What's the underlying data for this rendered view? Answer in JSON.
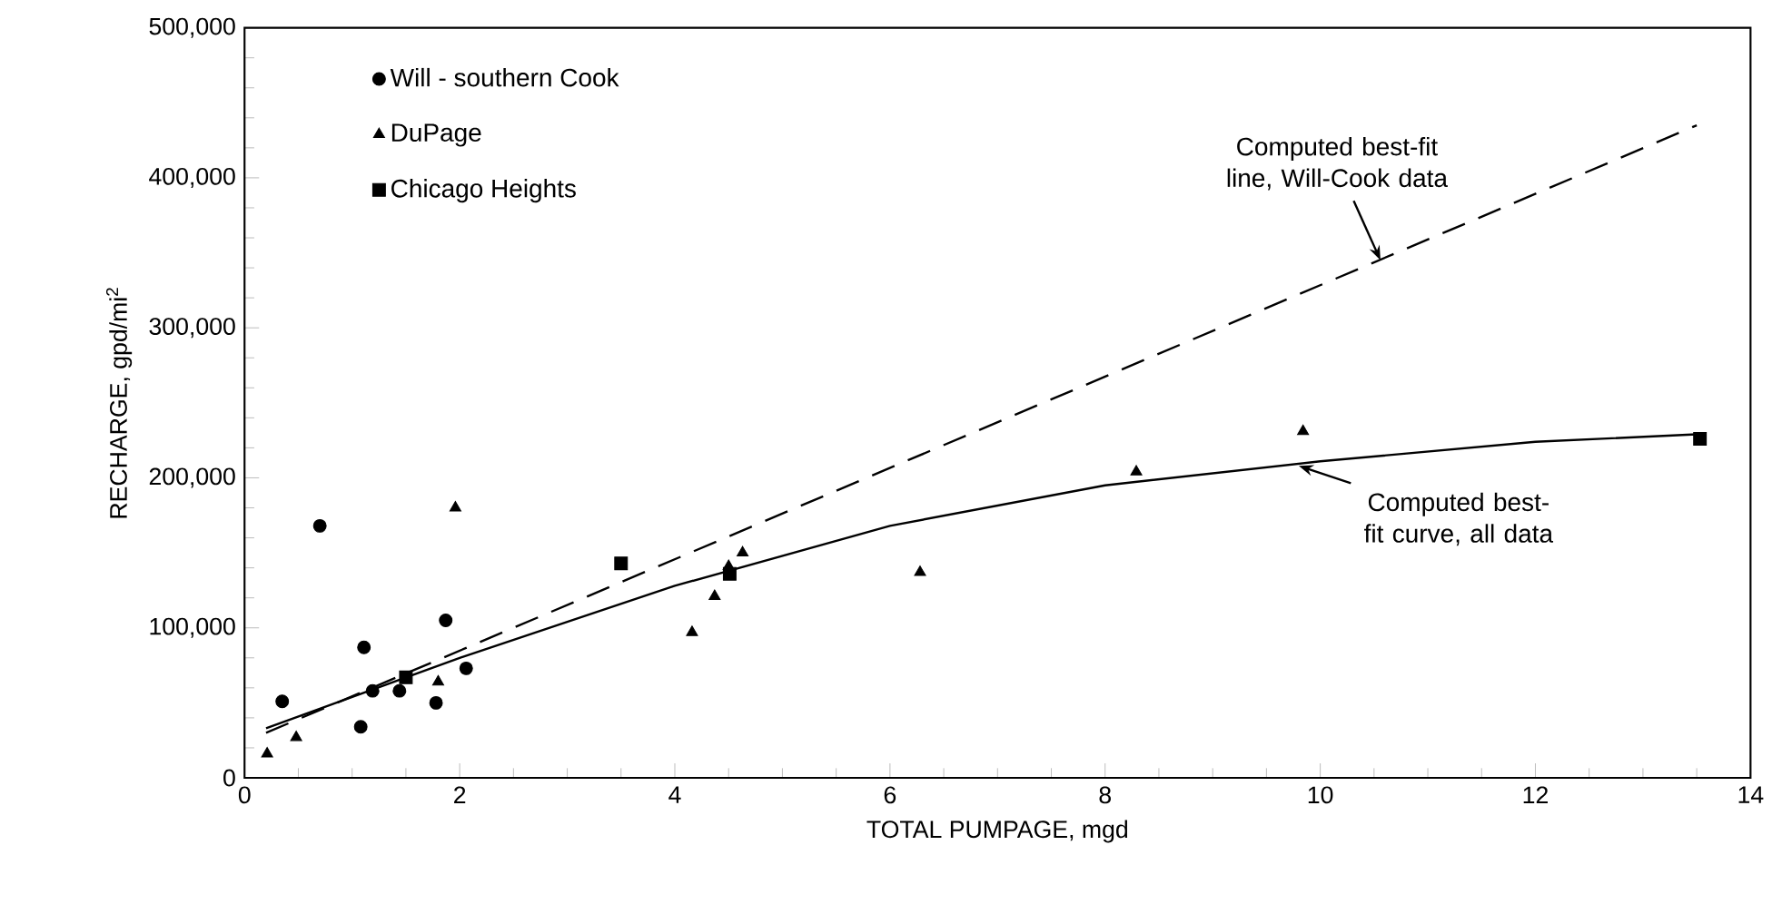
{
  "chart_data": {
    "type": "scatter",
    "xlabel": "TOTAL PUMPAGE, mgd",
    "ylabel": "RECHARGE, gpd/mi$^{2}$",
    "xlim": [
      0,
      14
    ],
    "xticks": [
      0,
      2,
      4,
      6,
      8,
      10,
      12,
      14
    ],
    "ylim": [
      0,
      500000
    ],
    "yticks": [
      0,
      {
        "value": 100000,
        "label": "100,000"
      },
      {
        "value": 200000,
        "label": "200,000"
      },
      {
        "value": 300000,
        "label": "300,000"
      },
      {
        "value": 400000,
        "label": "400,000"
      },
      {
        "value": 500000,
        "label": "500,000"
      }
    ],
    "grid": false,
    "legend": "top left",
    "series": [
      {
        "name": "Will - southern Cook",
        "color": "#000000",
        "marker": "circle",
        "x": [
          0.35,
          0.7,
          1.08,
          1.11,
          1.19,
          1.44,
          1.78,
          1.87,
          2.06
        ],
        "values": [
          51000,
          168000,
          34000,
          87000,
          58000,
          58000,
          50000,
          105000,
          73000
        ]
      },
      {
        "name": "DuPage",
        "color": "#000000",
        "marker": "triangle",
        "x": [
          0.21,
          0.48,
          1.8,
          1.96,
          4.16,
          4.37,
          4.5,
          4.63,
          6.28,
          8.29,
          9.84
        ],
        "values": [
          16000,
          27000,
          64000,
          180000,
          97000,
          121000,
          141000,
          150000,
          137000,
          204000,
          231000
        ]
      },
      {
        "name": "Chicago Heights",
        "color": "#000000",
        "marker": "square",
        "x": [
          1.5,
          3.5,
          4.51,
          13.53
        ],
        "values": [
          67000,
          143000,
          136000,
          226000
        ]
      },
      {
        "type": "line",
        "color": "#000000",
        "marker": "none",
        "line_style": "dashed",
        "x": [
          0.2,
          13.5
        ],
        "values": [
          30000,
          435000
        ]
      },
      {
        "type": "line",
        "color": "#000000",
        "marker": "none",
        "line_style": "solid",
        "x": [
          0.2,
          2,
          4,
          6,
          8,
          10,
          12,
          13.5
        ],
        "values": [
          33000,
          80000,
          128000,
          168000,
          195000,
          211000,
          224000,
          229000
        ]
      }
    ],
    "annotations": [
      {
        "text": "Computed best-fit line, Will-Cook data",
        "x": 10.56,
        "y": 345000
      },
      {
        "text": "Computed best-fit curve, all data",
        "x": 9.8,
        "y": 208000
      }
    ]
  }
}
